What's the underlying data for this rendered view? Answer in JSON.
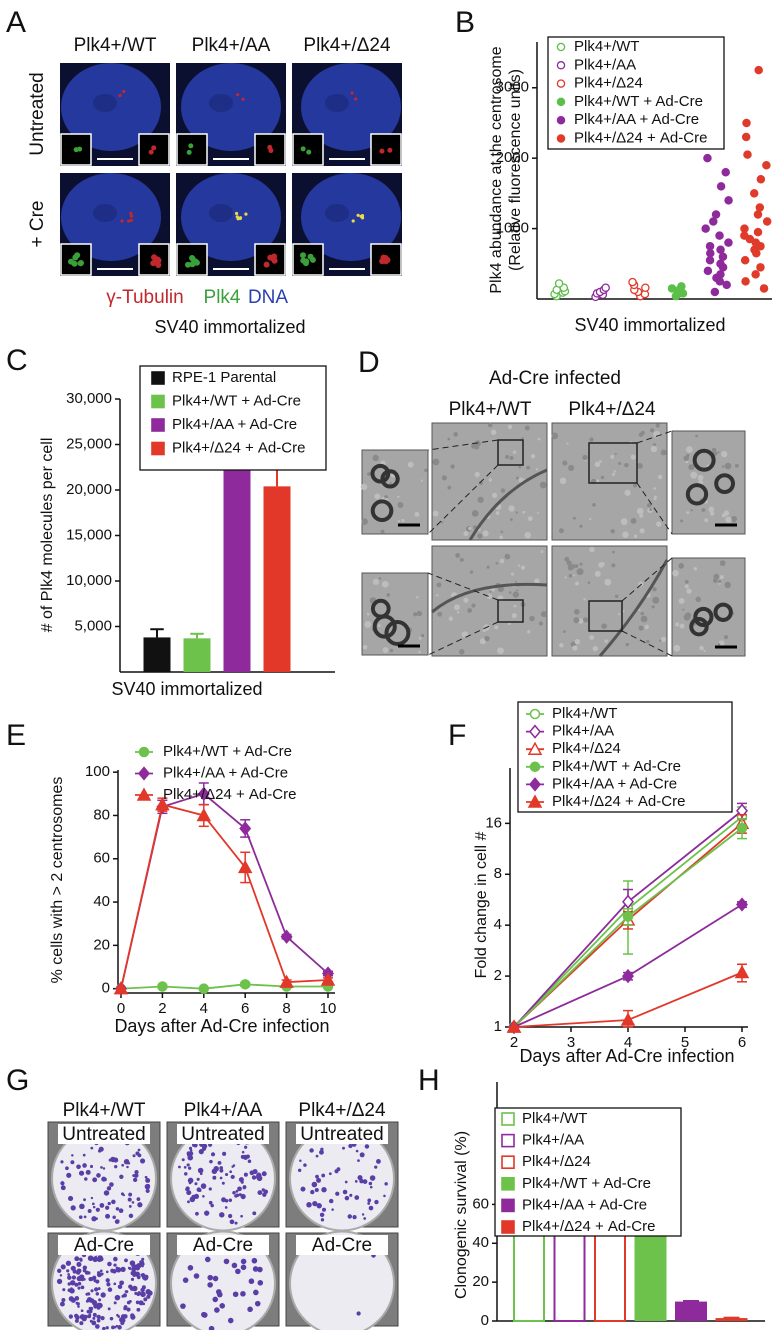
{
  "figure": {
    "panel_A": {
      "panel_label": "A",
      "columns": [
        "Plk4+/WT",
        "Plk4+/AA",
        "Plk4+/Δ24"
      ],
      "rows": [
        "Untreated",
        "+ Cre"
      ],
      "stains": [
        {
          "name": "γ-Tubulin",
          "color": "#c0282d"
        },
        {
          "name": "Plk4",
          "color": "#3aa03a"
        },
        {
          "name": "DNA",
          "color": "#2a3fb0"
        }
      ],
      "caption": "SV40 immortalized"
    },
    "panel_D": {
      "panel_label": "D",
      "title": "Ad-Cre infected",
      "columns": [
        "Plk4+/WT",
        "Plk4+/Δ24"
      ]
    },
    "panel_G": {
      "panel_label": "G",
      "columns": [
        "Plk4+/WT",
        "Plk4+/AA",
        "Plk4+/Δ24"
      ],
      "rows": [
        "Untreated",
        "Ad-Cre"
      ]
    }
  },
  "chart_data": [
    {
      "type": "strip",
      "panel_label": "B",
      "ylabel": [
        "Plk4 abundance at the centrosome",
        "(Relative fluorescence units)"
      ],
      "xlabel": "SV40 immortalized",
      "ylim": [
        0,
        3650
      ],
      "yticks": [
        1000,
        2000,
        3000
      ],
      "legend": "upper left",
      "series": [
        {
          "name": "Plk4+/WT",
          "color": "#5cbf4a",
          "fill": "open",
          "values": [
            40,
            70,
            90,
            110,
            130,
            160,
            220
          ]
        },
        {
          "name": "Plk4+/AA",
          "color": "#8e2a9c",
          "fill": "open",
          "values": [
            30,
            60,
            80,
            100,
            130,
            160
          ]
        },
        {
          "name": "Plk4+/Δ24",
          "color": "#e03a2a",
          "fill": "open",
          "values": [
            40,
            70,
            100,
            130,
            160,
            200,
            240
          ]
        },
        {
          "name": "Plk4+/WT + Ad-Cre",
          "color": "#5cbf4a",
          "fill": "filled",
          "values": [
            40,
            60,
            80,
            100,
            120,
            150,
            180
          ]
        },
        {
          "name": "Plk4+/AA + Ad-Cre",
          "color": "#8e2a9c",
          "fill": "filled",
          "values": [
            100,
            200,
            250,
            300,
            350,
            400,
            450,
            500,
            550,
            600,
            650,
            700,
            750,
            800,
            900,
            1000,
            1100,
            1200,
            1400,
            1600,
            1800,
            2000
          ]
        },
        {
          "name": "Plk4+/Δ24 + Ad-Cre",
          "color": "#e03a2a",
          "fill": "filled",
          "values": [
            150,
            250,
            350,
            450,
            550,
            650,
            700,
            750,
            800,
            850,
            900,
            950,
            1000,
            1100,
            1200,
            1300,
            1500,
            1700,
            1900,
            2050,
            2300,
            2500,
            3250
          ]
        }
      ]
    },
    {
      "type": "bar",
      "panel_label": "C",
      "ylabel": "# of Plk4 molecules per cell",
      "xlabel": "SV40 immortalized",
      "ylim": [
        0,
        30000
      ],
      "yticks": [
        {
          "value": 5000,
          "label": "5,000"
        },
        {
          "value": 10000,
          "label": "10,000"
        },
        {
          "value": 15000,
          "label": "15,000"
        },
        {
          "value": 20000,
          "label": "20,000"
        },
        {
          "value": 25000,
          "label": "25,000"
        },
        {
          "value": 30000,
          "label": "30,000"
        }
      ],
      "legend": "upper left",
      "series": [
        {
          "name": "RPE-1 Parental",
          "color": "#111111",
          "fill": "filled",
          "values": [
            3800
          ],
          "errors": [
            900
          ]
        },
        {
          "name": "Plk4+/WT + Ad-Cre",
          "color": "#6cc24a",
          "fill": "filled",
          "values": [
            3700
          ],
          "errors": [
            500
          ]
        },
        {
          "name": "Plk4+/AA + Ad-Cre",
          "color": "#8e2a9c",
          "fill": "filled",
          "values": [
            22500
          ],
          "errors": [
            3200
          ]
        },
        {
          "name": "Plk4+/Δ24 + Ad-Cre",
          "color": "#e2382a",
          "fill": "filled",
          "values": [
            20400
          ],
          "errors": [
            4000
          ]
        }
      ]
    },
    {
      "type": "line",
      "panel_label": "E",
      "ylabel": "% cells with > 2 centrosomes",
      "xlabel": "Days after Ad-Cre infection",
      "x": [
        0,
        2,
        4,
        6,
        8,
        10
      ],
      "xlim": [
        0,
        10
      ],
      "xticks": [
        0,
        2,
        4,
        6,
        8,
        10
      ],
      "ylim": [
        -2,
        101
      ],
      "yticks": [
        0,
        20,
        40,
        60,
        80,
        100
      ],
      "legend": "top",
      "series": [
        {
          "name": "Plk4+/WT + Ad-Cre",
          "color": "#6cc24a",
          "marker": "circle",
          "fill": "filled",
          "values": [
            0,
            1,
            0,
            2,
            1,
            1
          ],
          "errors": [
            0.5,
            0.5,
            0.5,
            0.8,
            0.5,
            0.5
          ]
        },
        {
          "name": "Plk4+/AA + Ad-Cre",
          "color": "#8e2a9c",
          "marker": "diamond",
          "fill": "filled",
          "values": [
            0,
            84,
            90,
            74,
            24,
            7
          ],
          "errors": [
            0.5,
            3,
            5,
            4,
            1,
            1
          ]
        },
        {
          "name": "Plk4+/Δ24 + Ad-Cre",
          "color": "#e2382a",
          "marker": "triangle",
          "fill": "filled",
          "values": [
            0,
            85,
            80,
            56,
            3,
            4
          ],
          "errors": [
            0.5,
            3,
            5,
            7,
            1,
            1
          ]
        }
      ]
    },
    {
      "type": "line",
      "panel_label": "F",
      "ylabel": "Fold change in cell #",
      "xlabel": "Days after Ad-Cre infection",
      "x": [
        2,
        4,
        6
      ],
      "xlim": [
        2,
        6
      ],
      "xticks": [
        2,
        3,
        4,
        5,
        6
      ],
      "log_scale": true,
      "ylim": [
        1,
        34
      ],
      "yticks": [
        1,
        2,
        4,
        8,
        16
      ],
      "legend": "upper left",
      "series": [
        {
          "name": "Plk4+/WT",
          "color": "#6cc24a",
          "marker": "circle",
          "fill": "open",
          "values": [
            1,
            5,
            17.5
          ],
          "errors": [
            0,
            2.3,
            2.5
          ]
        },
        {
          "name": "Plk4+/AA",
          "color": "#8e2a9c",
          "marker": "diamond",
          "fill": "open",
          "values": [
            1,
            5.5,
            19
          ],
          "errors": [
            0,
            1,
            2
          ]
        },
        {
          "name": "Plk4+/Δ24",
          "color": "#e2382a",
          "marker": "triangle",
          "fill": "open",
          "values": [
            1,
            4.3,
            16
          ],
          "errors": [
            0,
            0.5,
            2
          ]
        },
        {
          "name": "Plk4+/WT + Ad-Cre",
          "color": "#6cc24a",
          "marker": "circle",
          "fill": "filled",
          "values": [
            1,
            4.5,
            15
          ],
          "errors": [
            0,
            0.5,
            2
          ]
        },
        {
          "name": "Plk4+/AA + Ad-Cre",
          "color": "#8e2a9c",
          "marker": "diamond",
          "fill": "filled",
          "values": [
            1,
            2,
            5.3
          ],
          "errors": [
            0,
            0.1,
            0.2
          ]
        },
        {
          "name": "Plk4+/Δ24 + Ad-Cre",
          "color": "#e2382a",
          "marker": "triangle",
          "fill": "filled",
          "values": [
            1,
            1.1,
            2.1
          ],
          "errors": [
            0,
            0.15,
            0.25
          ]
        }
      ]
    },
    {
      "type": "bar",
      "panel_label": "H",
      "ylabel": "Clonogenic survival (%)",
      "ylim": [
        0,
        123
      ],
      "yticks": [
        0,
        20,
        40,
        60
      ],
      "legend": "upper left",
      "series": [
        {
          "name": "Plk4+/WT",
          "color": "#6cc24a",
          "fill": "open",
          "values": [
            56
          ],
          "errors": [
            1.5
          ]
        },
        {
          "name": "Plk4+/AA",
          "color": "#8e2a9c",
          "fill": "open",
          "values": [
            56
          ],
          "errors": [
            2.5
          ]
        },
        {
          "name": "Plk4+/Δ24",
          "color": "#e2382a",
          "fill": "open",
          "values": [
            47
          ],
          "errors": [
            2.5
          ]
        },
        {
          "name": "Plk4+/WT + Ad-Cre",
          "color": "#6cc24a",
          "fill": "filled",
          "values": [
            55
          ],
          "errors": [
            2.5
          ]
        },
        {
          "name": "Plk4+/AA + Ad-Cre",
          "color": "#8e2a9c",
          "fill": "filled",
          "values": [
            10
          ],
          "errors": [
            0.3
          ]
        },
        {
          "name": "Plk4+/Δ24 + Ad-Cre",
          "color": "#e2382a",
          "fill": "filled",
          "values": [
            1.5
          ],
          "errors": [
            0.2
          ]
        }
      ]
    }
  ]
}
